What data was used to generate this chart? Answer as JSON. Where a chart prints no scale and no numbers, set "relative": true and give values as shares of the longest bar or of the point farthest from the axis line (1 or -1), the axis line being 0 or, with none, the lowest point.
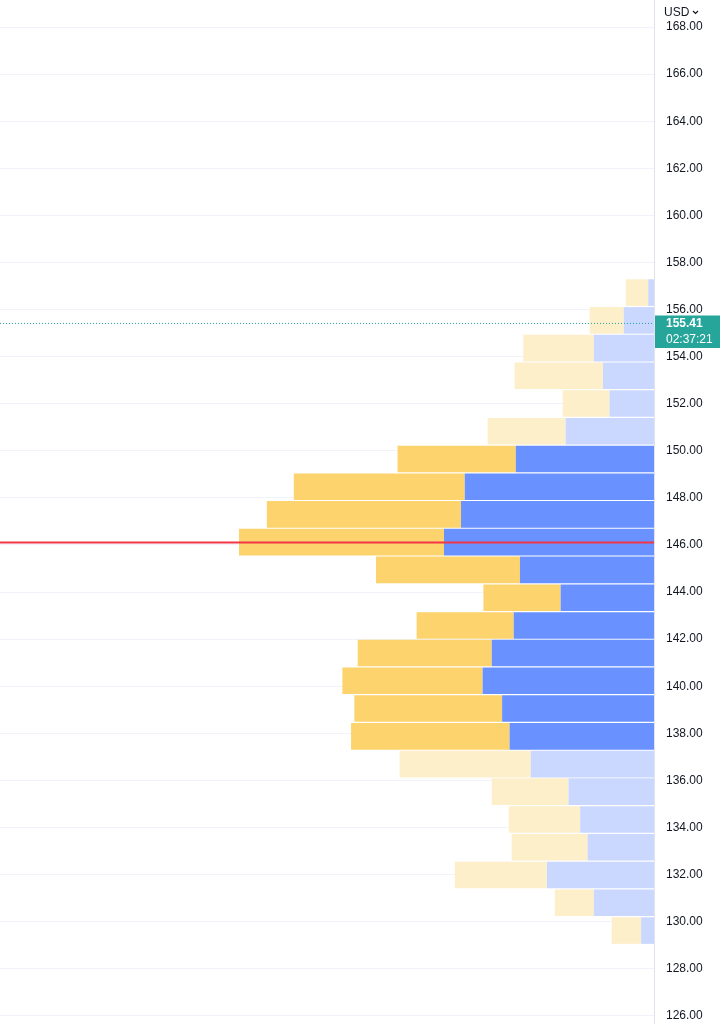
{
  "chart_data": {
    "type": "bar",
    "orientation": "horizontal",
    "stacked": true,
    "relative": true,
    "ylabel": "USD",
    "x": [
      156.72,
      155.54,
      154.36,
      153.19,
      152.01,
      150.83,
      149.65,
      148.47,
      147.3,
      146.12,
      144.94,
      143.76,
      142.58,
      141.41,
      140.23,
      139.05,
      137.87,
      136.69,
      135.52,
      134.34,
      133.16,
      131.98,
      130.8,
      129.62
    ],
    "series": [
      {
        "colors": [
          "#cad8ff",
          "#cad8ff",
          "#cad8ff",
          "#cad8ff",
          "#cad8ff",
          "#cad8ff",
          "#6991ff",
          "#6991ff",
          "#6991ff",
          "#6991ff",
          "#6991ff",
          "#6991ff",
          "#6991ff",
          "#6991ff",
          "#6991ff",
          "#6991ff",
          "#6991ff",
          "#cad8ff",
          "#cad8ff",
          "#cad8ff",
          "#cad8ff",
          "#cad8ff",
          "#cad8ff",
          "#cad8ff"
        ],
        "values": [
          0.014,
          0.073,
          0.145,
          0.123,
          0.107,
          0.213,
          0.333,
          0.456,
          0.465,
          0.506,
          0.323,
          0.225,
          0.338,
          0.391,
          0.413,
          0.366,
          0.348,
          0.297,
          0.206,
          0.178,
          0.16,
          0.258,
          0.145,
          0.031
        ]
      },
      {
        "colors": [
          "#feefcb",
          "#feefcb",
          "#feefcb",
          "#feefcb",
          "#feefcb",
          "#feefcb",
          "#fcd36c",
          "#fcd36c",
          "#fcd36c",
          "#fcd36c",
          "#fcd36c",
          "#fcd36c",
          "#fcd36c",
          "#fcd36c",
          "#fcd36c",
          "#fcd36c",
          "#fcd36c",
          "#feefcb",
          "#feefcb",
          "#feefcb",
          "#feefcb",
          "#feefcb",
          "#feefcb",
          "#feefcb"
        ],
        "values": [
          0.054,
          0.082,
          0.17,
          0.213,
          0.113,
          0.188,
          0.285,
          0.412,
          0.468,
          0.494,
          0.347,
          0.186,
          0.234,
          0.323,
          0.338,
          0.356,
          0.382,
          0.316,
          0.185,
          0.172,
          0.183,
          0.222,
          0.094,
          0.071
        ]
      }
    ],
    "ylim": [
      125.65,
      169.15
    ],
    "yticks": [
      {
        "value": 126,
        "label": "126.00"
      },
      {
        "value": 128,
        "label": "128.00"
      },
      {
        "value": 130,
        "label": "130.00"
      },
      {
        "value": 132,
        "label": "132.00"
      },
      {
        "value": 134,
        "label": "134.00"
      },
      {
        "value": 136,
        "label": "136.00"
      },
      {
        "value": 138,
        "label": "138.00"
      },
      {
        "value": 140,
        "label": "140.00"
      },
      {
        "value": 142,
        "label": "142.00"
      },
      {
        "value": 144,
        "label": "144.00"
      },
      {
        "value": 146,
        "label": "146.00"
      },
      {
        "value": 148,
        "label": "148.00"
      },
      {
        "value": 150,
        "label": "150.00"
      },
      {
        "value": 152,
        "label": "152.00"
      },
      {
        "value": 154,
        "label": "154.00"
      },
      {
        "value": 156,
        "label": "156.00"
      },
      {
        "value": 158,
        "label": "158.00"
      },
      {
        "value": 160,
        "label": "160.00"
      },
      {
        "value": 162,
        "label": "162.00"
      },
      {
        "value": 164,
        "label": "164.00"
      },
      {
        "value": 166,
        "label": "166.00"
      },
      {
        "value": 168,
        "label": "168.00"
      }
    ],
    "grid": "y",
    "ref_lines": [
      {
        "axis": "y",
        "value": 155.41,
        "label": "155.41",
        "color": "#26a69a",
        "line_style": "dotted"
      },
      {
        "axis": "y",
        "value": 146.1,
        "color": "#f23645",
        "line_style": "solid"
      }
    ],
    "annotations": [
      "02:37:21"
    ]
  }
}
